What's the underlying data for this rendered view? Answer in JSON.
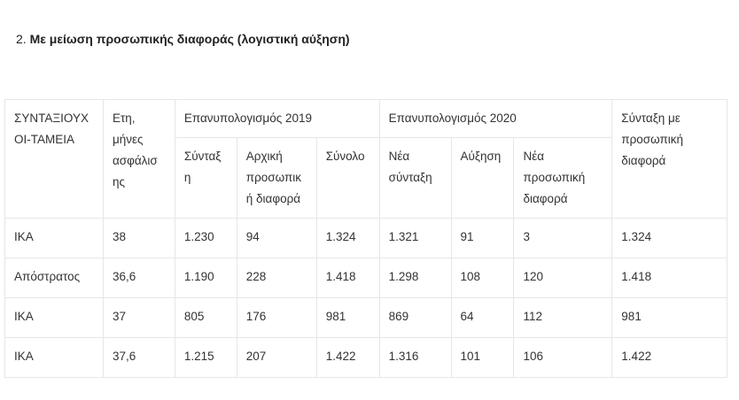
{
  "heading": {
    "number": "2.",
    "title": "Με μείωση προσωπικής διαφοράς (λογιστική αύξηση)"
  },
  "table": {
    "header": {
      "funds": "ΣΥΝΤΑΞΙΟΥΧ ΟΙ-ΤΑΜΕΙΑ",
      "years": "Ετη, μήνες ασφάλισ ης",
      "group_2019": "Επανυπολογισμός 2019",
      "group_2020": "Επανυπολογισμός 2020",
      "final": "Σύνταξη με προσωπική διαφορά",
      "pension_2019": "Σύνταξ η",
      "initial_diff": "Αρχική προσωπικ ή διαφορά",
      "total": "Σύνολο",
      "new_pension": "Νέα σύνταξη",
      "increase": "Αύξηση",
      "new_diff": "Νέα προσωπική διαφορά"
    },
    "rows": [
      [
        "ΙΚΑ",
        "38",
        "1.230",
        "94",
        "1.324",
        "1.321",
        "91",
        "3",
        "1.324"
      ],
      [
        "Απόστρατος",
        "36,6",
        "1.190",
        "228",
        "1.418",
        "1.298",
        "108",
        "120",
        "1.418"
      ],
      [
        "ΙΚΑ",
        "37",
        "805",
        "176",
        "981",
        "869",
        "64",
        "112",
        "981"
      ],
      [
        "ΙΚΑ",
        "37,6",
        "1.215",
        "207",
        "1.422",
        "1.316",
        "101",
        "106",
        "1.422"
      ]
    ]
  }
}
